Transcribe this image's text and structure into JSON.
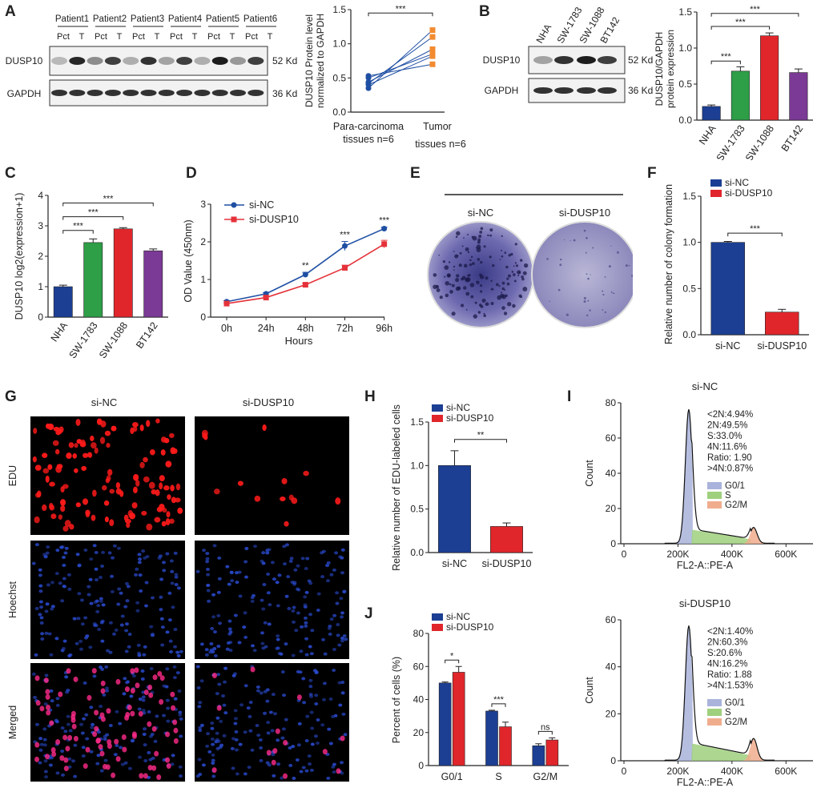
{
  "panels": {
    "A": {
      "label": "A",
      "blot": {
        "patients": [
          "Patient1",
          "Patient2",
          "Patient3",
          "Patient4",
          "Patient5",
          "Patient6"
        ],
        "lanes": [
          "Pct",
          "T"
        ],
        "rows": [
          "DUSP10",
          "GAPDH"
        ],
        "sizes": [
          "52 Kd",
          "36 Kd"
        ]
      },
      "chart_data": {
        "type": "line",
        "title": "",
        "ylabel": "DUSP10 Protein level normalized to GAPDH",
        "ylabel_lines": [
          "DUSP10 Protein level",
          "normalized to GAPDH"
        ],
        "xlabel": "",
        "categories": [
          "Para-carcinoma tissues n=6",
          "Tumor tissues n=6"
        ],
        "category_lines": [
          [
            "Para-carcinoma",
            "tissues n=6"
          ],
          [
            "Tumor",
            "tissues n=6"
          ]
        ],
        "ylim": [
          0,
          1.5
        ],
        "yticks": [
          "0.0",
          "0.5",
          "1.0",
          "1.5"
        ],
        "pairs": [
          [
            0.35,
            1.2
          ],
          [
            0.42,
            1.1
          ],
          [
            0.44,
            0.92
          ],
          [
            0.5,
            0.85
          ],
          [
            0.4,
            0.82
          ],
          [
            0.53,
            0.7
          ]
        ],
        "colors": {
          "para": "#1f4fa3",
          "tumor": "#f28b30"
        },
        "significance": "***"
      }
    },
    "B": {
      "label": "B",
      "blot": {
        "lanes": [
          "NHA",
          "SW-1783",
          "SW-1088",
          "BT142"
        ],
        "rows": [
          "DUSP10",
          "GAPDH"
        ],
        "sizes": [
          "52 Kd",
          "36 Kd"
        ]
      },
      "chart_data": {
        "type": "bar",
        "ylabel": "DUSP10/GAPDH protein expression",
        "ylabel_lines": [
          "DUSP10/GAPDH",
          "protein expression"
        ],
        "categories": [
          "NHA",
          "SW-1783",
          "SW-1088",
          "BT142"
        ],
        "values": [
          0.19,
          0.68,
          1.17,
          0.66
        ],
        "errors": [
          0.02,
          0.06,
          0.04,
          0.05
        ],
        "ylim": [
          0,
          1.5
        ],
        "yticks": [
          "0.0",
          "0.5",
          "1.0",
          "1.5"
        ],
        "colors": [
          "#1c3f94",
          "#2e9e47",
          "#e0262b",
          "#7b3a96"
        ],
        "significance": [
          "***",
          "***",
          "***"
        ]
      }
    },
    "C": {
      "label": "C",
      "chart_data": {
        "type": "bar",
        "ylabel": "DUSP10 log2(expression+1)",
        "categories": [
          "NHA",
          "SW-1783",
          "SW-1088",
          "BT142"
        ],
        "values": [
          1.0,
          2.45,
          2.9,
          2.18
        ],
        "errors": [
          0.05,
          0.12,
          0.04,
          0.06
        ],
        "ylim": [
          0,
          4
        ],
        "yticks": [
          "0",
          "1",
          "2",
          "3",
          "4"
        ],
        "colors": [
          "#1c3f94",
          "#2e9e47",
          "#e0262b",
          "#7b3a96"
        ],
        "significance": [
          "***",
          "***",
          "***"
        ]
      }
    },
    "D": {
      "label": "D",
      "chart_data": {
        "type": "line",
        "xlabel": "Hours",
        "ylabel": "OD Value (450nm)",
        "categories": [
          "0h",
          "24h",
          "48h",
          "72h",
          "96h"
        ],
        "ylim": [
          0,
          3
        ],
        "yticks": [
          "0",
          "1",
          "2",
          "3"
        ],
        "series": [
          {
            "name": "si-NC",
            "values": [
              0.41,
              0.62,
              1.13,
              1.89,
              2.35
            ],
            "errors": [
              0.03,
              0.03,
              0.06,
              0.12,
              0.04
            ],
            "color": "#1f4fa3"
          },
          {
            "name": "si-DUSP10",
            "values": [
              0.36,
              0.52,
              0.86,
              1.31,
              1.94
            ],
            "errors": [
              0.02,
              0.03,
              0.04,
              0.07,
              0.1
            ],
            "color": "#e5323a"
          }
        ],
        "significance": [
          "",
          "",
          "**",
          "***",
          "***"
        ]
      }
    },
    "E": {
      "label": "E",
      "groups": [
        "si-NC",
        "si-DUSP10"
      ]
    },
    "F": {
      "label": "F",
      "chart_data": {
        "type": "bar",
        "ylabel": "Relative number of colony formation",
        "categories": [
          "si-NC",
          "si-DUSP10"
        ],
        "values": [
          1.0,
          0.245
        ],
        "errors": [
          0.01,
          0.03
        ],
        "ylim": [
          0,
          1.5
        ],
        "yticks": [
          "0.0",
          "0.5",
          "1.0",
          "1.5"
        ],
        "legend": [
          "si-NC",
          "si-DUSP10"
        ],
        "colors": [
          "#1c3f94",
          "#e0262b"
        ],
        "significance": "***"
      }
    },
    "G": {
      "label": "G",
      "columns": [
        "si-NC",
        "si-DUSP10"
      ],
      "rows": [
        "EDU",
        "Hoechst",
        "Merged"
      ]
    },
    "H": {
      "label": "H",
      "chart_data": {
        "type": "bar",
        "ylabel": "Relative number of EDU-labeled cells",
        "categories": [
          "si-NC",
          "si-DUSP10"
        ],
        "values": [
          1.0,
          0.3
        ],
        "errors": [
          0.17,
          0.04
        ],
        "ylim": [
          0,
          1.5
        ],
        "yticks": [
          "0.0",
          "0.5",
          "1.0",
          "1.5"
        ],
        "legend": [
          "si-NC",
          "si-DUSP10"
        ],
        "colors": [
          "#1c3f94",
          "#e0262b"
        ],
        "significance": "**"
      }
    },
    "I": {
      "label": "I",
      "charts": [
        {
          "title": "si-NC",
          "type": "area",
          "xlabel": "FL2-A::PE-A",
          "ylabel": "Count",
          "xticks": [
            "0",
            "200K",
            "400K",
            "600K"
          ],
          "yticks": [
            "0",
            "20",
            "40",
            "60",
            "80"
          ],
          "ylim": [
            0,
            80
          ],
          "stats": [
            "<2N:4.94%",
            "2N:49.5%",
            "S:33.0%",
            "4N:11.6%",
            "Ratio: 1.90",
            ">4N:0.87%"
          ],
          "legend": [
            "G0/1",
            "S",
            "G2/M"
          ],
          "g1_peak": 76,
          "g2_peak": 9
        },
        {
          "title": "si-DUSP10",
          "type": "area",
          "xlabel": "FL2-A::PE-A",
          "ylabel": "Count",
          "xticks": [
            "0",
            "200K",
            "400K",
            "600K"
          ],
          "yticks": [
            "0",
            "20",
            "40",
            "60"
          ],
          "ylim": [
            0,
            65
          ],
          "stats": [
            "<2N:1.40%",
            "2N:60.3%",
            "S:20.6%",
            "4N:16.2%",
            "Ratio: 1.88",
            ">4N:1.53%"
          ],
          "legend": [
            "G0/1",
            "S",
            "G2/M"
          ],
          "g1_peak": 62,
          "g2_peak": 10
        }
      ]
    },
    "J": {
      "label": "J",
      "chart_data": {
        "type": "bar",
        "ylabel": "Percent of cells (%)",
        "categories": [
          "G0/1",
          "S",
          "G2/M"
        ],
        "series": [
          {
            "name": "si-NC",
            "values": [
              50,
              33,
              12
            ],
            "errors": [
              0.6,
              0.5,
              1.2
            ],
            "color": "#1c3f94"
          },
          {
            "name": "si-DUSP10",
            "values": [
              56.5,
              23.5,
              15.5
            ],
            "errors": [
              3.5,
              2.8,
              1.3
            ],
            "color": "#e0262b"
          }
        ],
        "ylim": [
          0,
          80
        ],
        "yticks": [
          "0",
          "20",
          "40",
          "60",
          "80"
        ],
        "significance": [
          "*",
          "***",
          "ns"
        ]
      }
    }
  }
}
